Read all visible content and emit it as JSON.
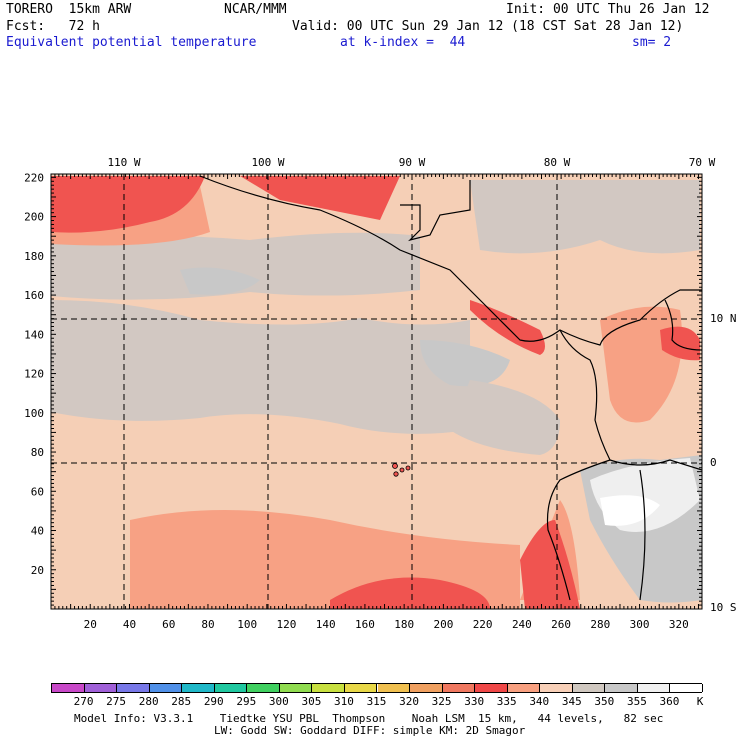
{
  "header": {
    "model": "TORERO  15km ARW",
    "center": "NCAR/MMM",
    "init": "Init: 00 UTC Thu 26 Jan 12",
    "fcst": "Fcst:   72 h",
    "valid": "Valid: 00 UTC Sun 29 Jan 12 (18 CST Sat 28 Jan 12)",
    "field": "Equivalent potential temperature",
    "level": "at k-index =  44",
    "smooth": "sm= 2"
  },
  "axes": {
    "left_ticks": [
      "220",
      "200",
      "180",
      "160",
      "140",
      "120",
      "100",
      "80",
      "60",
      "40",
      "20"
    ],
    "bottom_ticks": [
      "20",
      "40",
      "60",
      "80",
      "100",
      "120",
      "140",
      "160",
      "180",
      "200",
      "220",
      "240",
      "260",
      "280",
      "300",
      "320"
    ],
    "top_lon": [
      "110 W",
      "100 W",
      "90 W",
      "80 W",
      "70 W"
    ],
    "right_lat": [
      "10 N",
      "0",
      "10 S"
    ]
  },
  "colorbar": {
    "labels": [
      "270",
      "275",
      "280",
      "285",
      "290",
      "295",
      "300",
      "305",
      "310",
      "315",
      "320",
      "325",
      "330",
      "335",
      "340",
      "345",
      "350",
      "355",
      "360"
    ],
    "unit": "K",
    "colors": [
      "#c848c8",
      "#a060d8",
      "#7878e8",
      "#5090e8",
      "#20b8c8",
      "#20c8a0",
      "#40d060",
      "#90dc50",
      "#c8e040",
      "#e8d848",
      "#f0c050",
      "#f0a060",
      "#f07860",
      "#f04848",
      "#f8a080",
      "#f8d0b8",
      "#d0c8c0",
      "#c8c8c8",
      "#f0f0f0",
      "#ffffff"
    ]
  },
  "footer": {
    "line1": "Model Info: V3.3.1    Tiedtke YSU PBL  Thompson    Noah LSM  15 km,   44 levels,   82 sec",
    "line2": "LW: Godd SW: Goddard DIFF: simple KM: 2D Smagor"
  }
}
